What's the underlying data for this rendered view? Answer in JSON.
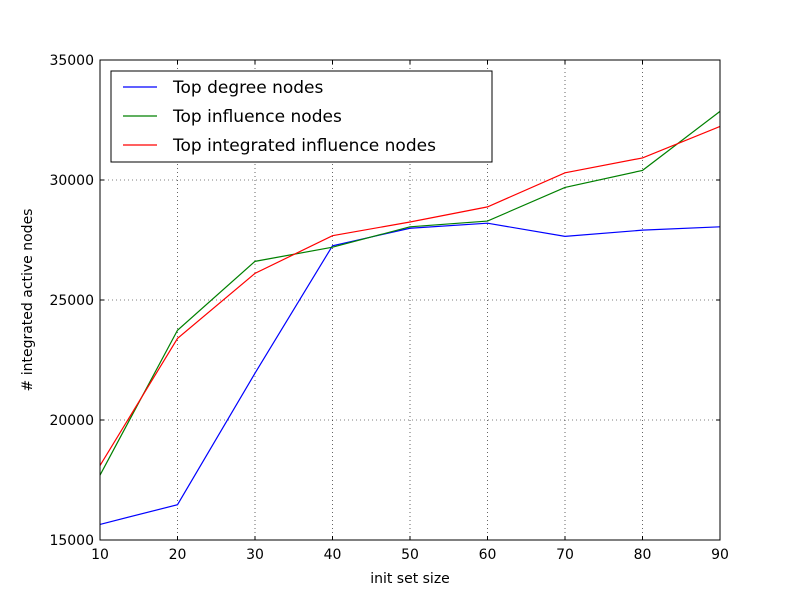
{
  "chart_data": {
    "type": "line",
    "title": "",
    "xlabel": "init set size",
    "ylabel": "# integrated active nodes",
    "xlim": [
      10,
      90
    ],
    "ylim": [
      15000,
      35000
    ],
    "xticks": [
      10,
      20,
      30,
      40,
      50,
      60,
      70,
      80,
      90
    ],
    "yticks": [
      15000,
      20000,
      25000,
      30000,
      35000
    ],
    "xtick_labels": [
      "10",
      "20",
      "30",
      "40",
      "50",
      "60",
      "70",
      "80",
      "90"
    ],
    "ytick_labels": [
      "15000",
      "20000",
      "25000",
      "30000",
      "35000"
    ],
    "grid": true,
    "legend_position": "upper-left",
    "x": [
      10,
      20,
      30,
      40,
      50,
      60,
      70,
      80,
      90
    ],
    "series": [
      {
        "name": "Top degree nodes",
        "color": "#0000ff",
        "values": [
          15650,
          16470,
          21950,
          27260,
          27990,
          28200,
          27650,
          27910,
          28050
        ]
      },
      {
        "name": "Top influence nodes",
        "color": "#008000",
        "values": [
          17700,
          23740,
          26610,
          27200,
          28050,
          28290,
          29690,
          30400,
          32860
        ]
      },
      {
        "name": "Top integrated influence nodes",
        "color": "#ff0000",
        "values": [
          18100,
          23400,
          26110,
          27680,
          28250,
          28880,
          30300,
          30920,
          32230
        ]
      }
    ]
  }
}
